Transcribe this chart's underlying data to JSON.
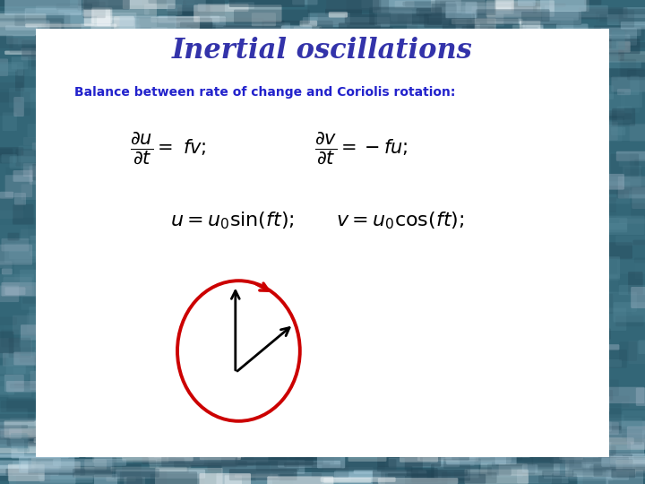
{
  "title": "Inertial oscillations",
  "subtitle": "Balance between rate of change and Coriolis rotation:",
  "title_color": "#3333AA",
  "subtitle_color": "#2222CC",
  "box_bg": "#ffffff",
  "circle_color": "#CC0000",
  "bg_color": "#336677",
  "bg_top_color": "#224455",
  "title_fontsize": 22,
  "subtitle_fontsize": 10,
  "eq1a_fontsize": 15,
  "eq2_fontsize": 16
}
